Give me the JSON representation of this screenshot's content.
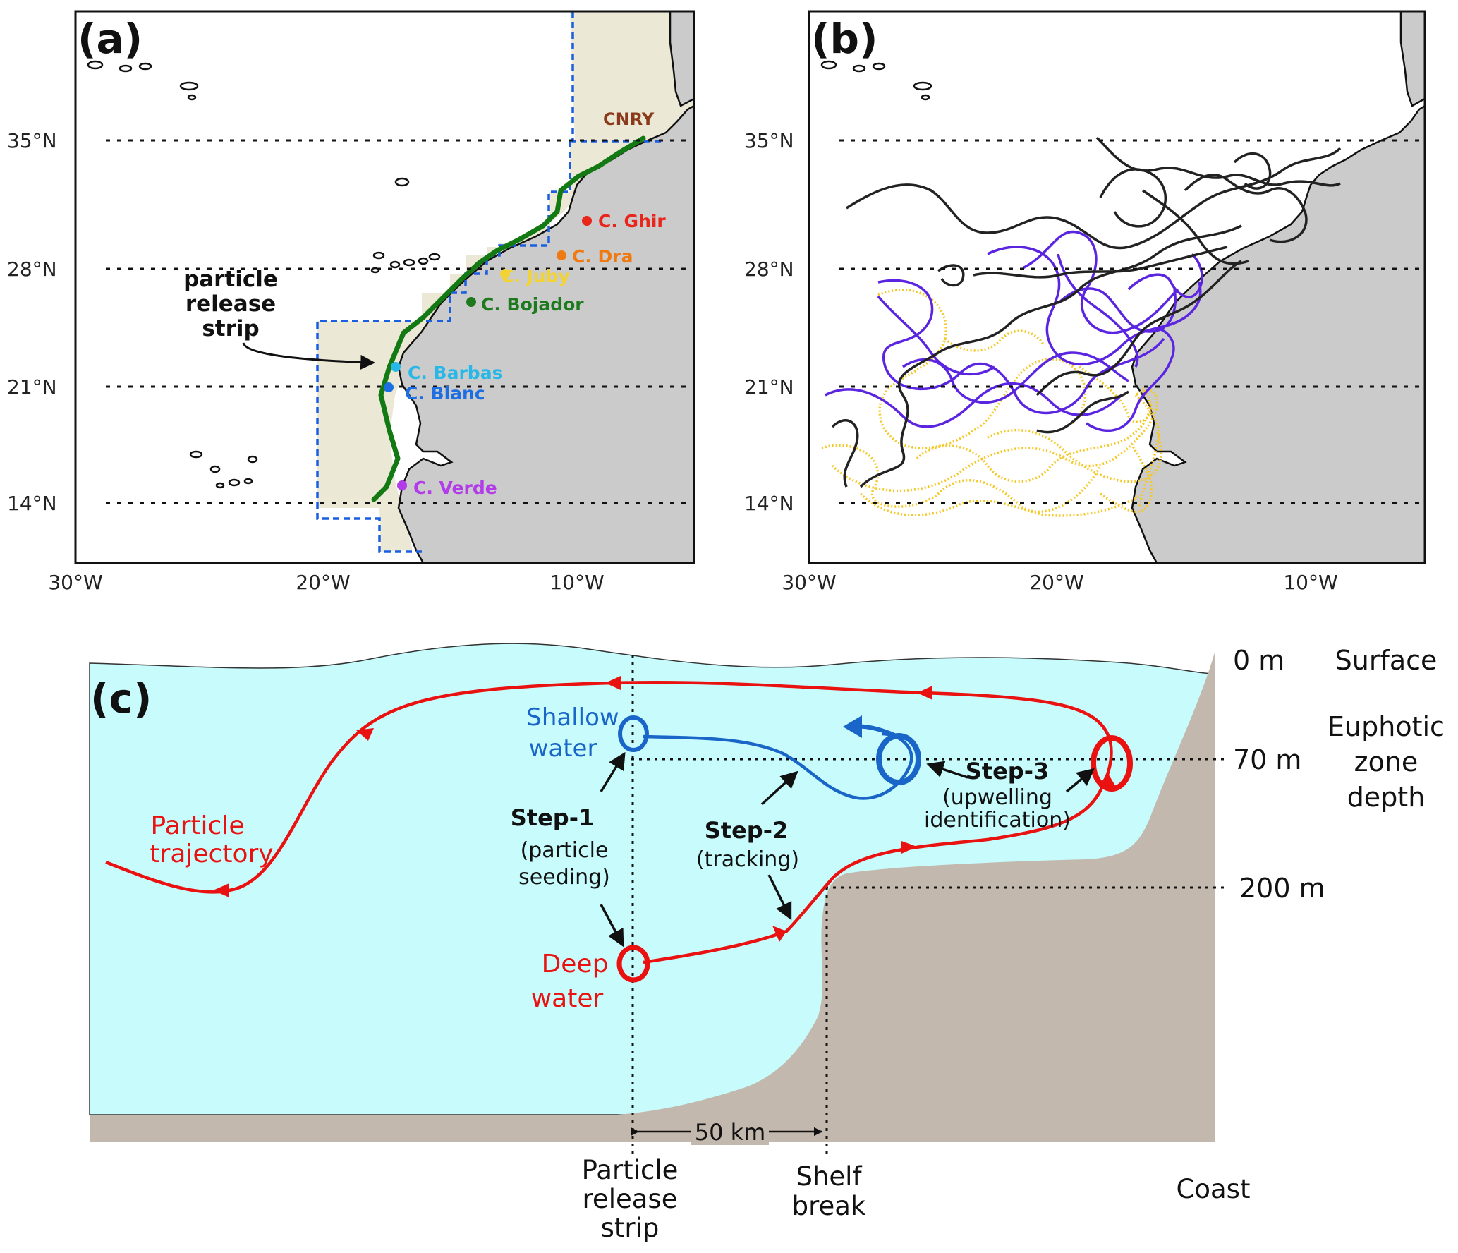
{
  "panels": {
    "a": {
      "label": "(a)",
      "lat_ticks": [
        "35°N",
        "28°N",
        "21°N",
        "14°N"
      ],
      "lon_ticks": [
        "30°W",
        "20°W",
        "10°W"
      ],
      "region_label": "CNRY",
      "strip_label_lines": [
        "particle",
        "release",
        "strip"
      ],
      "capes": [
        {
          "name": "C. Ghir",
          "color": "#e8261c"
        },
        {
          "name": "C. Dra",
          "color": "#f07a12"
        },
        {
          "name": "C. Juby",
          "color": "#f2d335"
        },
        {
          "name": "C. Bojador",
          "color": "#1f7a1f"
        },
        {
          "name": "C. Barbas",
          "color": "#28b8e8"
        },
        {
          "name": "C. Blanc",
          "color": "#1d6ee0"
        },
        {
          "name": "C. Verde",
          "color": "#b13ce8"
        }
      ]
    },
    "b": {
      "label": "(b)",
      "lat_ticks": [
        "35°N",
        "28°N",
        "21°N",
        "14°N"
      ],
      "lon_ticks": [
        "30°W",
        "20°W",
        "10°W"
      ],
      "trajectory_colors": [
        "#222222",
        "#5a24e0",
        "#f5c825"
      ]
    },
    "c": {
      "label": "(c)",
      "depths": [
        "0 m",
        "70 m",
        "200 m"
      ],
      "zones": {
        "surface": "Surface",
        "euphotic_lines": [
          "Euphotic",
          "zone",
          "depth"
        ]
      },
      "shallow_lines": [
        "Shallow",
        "water"
      ],
      "deep_lines": [
        "Deep",
        "water"
      ],
      "trajectory_lines": [
        "Particle",
        "trajectory"
      ],
      "step1": {
        "title": "Step-1",
        "sub_lines": [
          "(particle",
          "seeding)"
        ]
      },
      "step2": {
        "title": "Step-2",
        "sub_lines": [
          "(tracking)"
        ]
      },
      "step3": {
        "title": "Step-3",
        "sub_lines": [
          "(upwelling",
          "identification)"
        ]
      },
      "distance": "50 km",
      "bottom_labels": {
        "release_lines": [
          "Particle",
          "release",
          "strip"
        ],
        "shelf_lines": [
          "Shelf",
          "break"
        ],
        "coast": "Coast"
      }
    }
  }
}
